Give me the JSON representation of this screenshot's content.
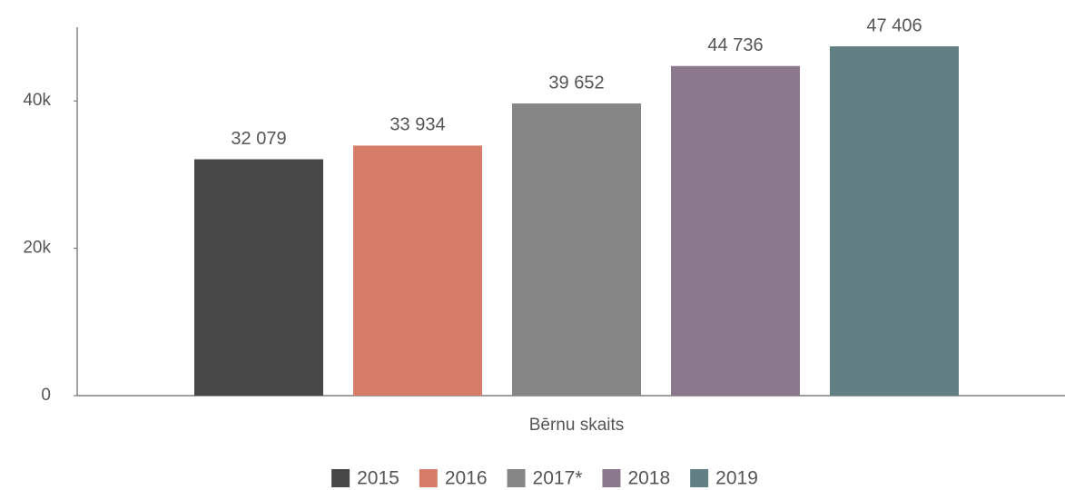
{
  "chart_data": {
    "type": "bar",
    "categories": [
      "Bērnu skaits"
    ],
    "series": [
      {
        "name": "2015",
        "color": "#474747",
        "values": [
          32079
        ],
        "value_labels": [
          "32 079"
        ]
      },
      {
        "name": "2016",
        "color": "#d57d69",
        "values": [
          33934
        ],
        "value_labels": [
          "33 934"
        ]
      },
      {
        "name": "2017*",
        "color": "#868686",
        "values": [
          39652
        ],
        "value_labels": [
          "39 652"
        ]
      },
      {
        "name": "2018",
        "color": "#8c788c",
        "values": [
          44736
        ],
        "value_labels": [
          "44 736"
        ]
      },
      {
        "name": "2019",
        "color": "#628084",
        "values": [
          47406
        ],
        "value_labels": [
          "47 406"
        ]
      }
    ],
    "ylim": [
      0,
      50000
    ],
    "yticks": [
      0,
      {
        "value": 20000,
        "label": "20k"
      },
      {
        "value": 40000,
        "label": "40k"
      }
    ],
    "grid": false,
    "legend": "bottom"
  }
}
